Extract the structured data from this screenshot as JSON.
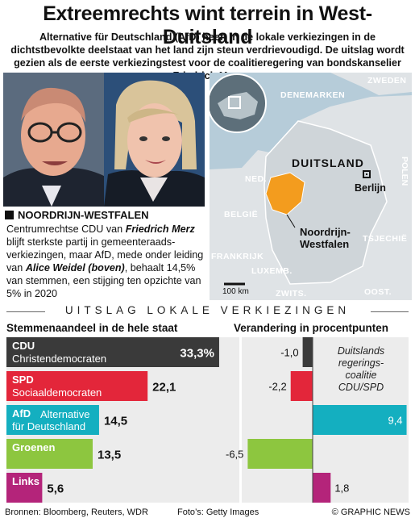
{
  "title": "Extreemrechts wint terrein in West-Duitsland",
  "intro": "Alternative für Deutschland (AfD) heeft in de lokale verkiezingen in de dichtstbevolkte deelstaat van het land zijn steun verdrievoudigd. De uitslag wordt gezien als de eerste verkiezingstest voor de coalitieregering van bondskanselier Friedrich Merz",
  "region": {
    "heading": "NOORDRIJN-WESTFALEN",
    "body_1": "Centrumrechtse CDU van ",
    "name_1": "Friedrich Merz",
    "body_2": " blijft sterkste partij in gemeenteraads-verkiezingen, maar AfD, mede onder leiding van ",
    "name_2": "Alice Weidel (boven)",
    "body_3": ", behaalt 14,5% van stemmen, een stijging ten opzichte van 5% in 2020"
  },
  "map": {
    "labels": {
      "zweden": "ZWEDEN",
      "denemarken": "DENEMARKEN",
      "duitsland": "DUITSLAND",
      "polen": "POLEN",
      "ned": "NED.",
      "belgie": "BELGIË",
      "tsjechie": "TSJECHIË",
      "luxemb": "LUXEMB.",
      "frankrijk": "FRANKRIJK",
      "zwits": "ZWITS.",
      "oost": "OOST.",
      "berlin": "Berlijn",
      "nrw_1": "Noordrijn-",
      "nrw_2": "Westfalen",
      "scale": "100 km"
    },
    "colors": {
      "sea": "#b6ccd9",
      "land": "#dfe3e6",
      "region": "#f39c1e"
    }
  },
  "section_title": "UITSLAG LOKALE VERKIEZINGEN",
  "left_header": "Stemmenaandeel in de hele staat",
  "right_header": "Verandering in procentpunten",
  "coalition_note": "Duitslands regerings-coalitie CDU/SPD",
  "chart_data": {
    "type": "bar",
    "categories": [
      "CDU",
      "SPD",
      "AfD",
      "Groenen",
      "Links"
    ],
    "full_names": [
      "Christendemocraten",
      "Sociaaldemocraten",
      "Alternative für Deutschland",
      "",
      ""
    ],
    "share_labels": [
      "33,3%",
      "22,1",
      "14,5",
      "13,5",
      "5,6"
    ],
    "share": [
      33.3,
      22.1,
      14.5,
      13.5,
      5.6
    ],
    "change_labels": [
      "-1,0",
      "-2,2",
      "9,4",
      "-6,5",
      "1,8"
    ],
    "change": [
      -1.0,
      -2.2,
      9.4,
      -6.5,
      1.8
    ],
    "colors": [
      "#3a3a3a",
      "#e3263a",
      "#14afc0",
      "#8dc63f",
      "#b4247a"
    ]
  },
  "footer": {
    "sources": "Bronnen: Bloomberg, Reuters, WDR",
    "photos": "Foto’s: Getty Images",
    "credit": "© GRAPHIC NEWS"
  }
}
